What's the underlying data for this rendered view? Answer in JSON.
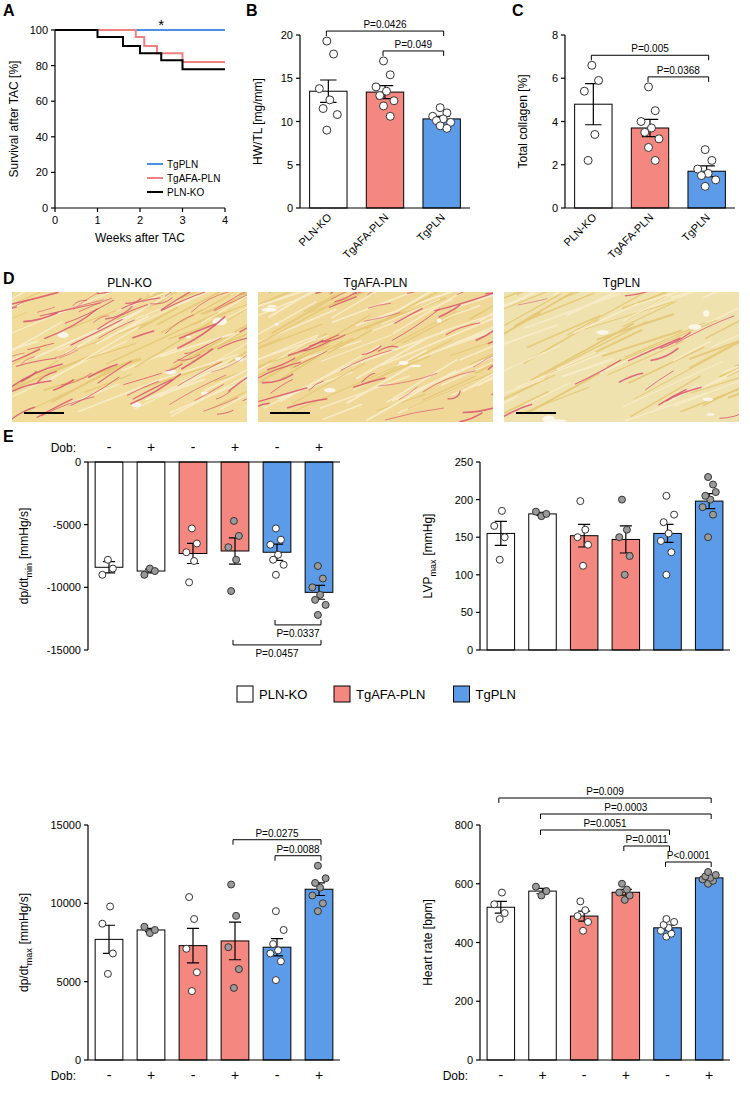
{
  "panel_labels": [
    "A",
    "B",
    "C",
    "D",
    "E"
  ],
  "chart_data": [
    {
      "type": "line",
      "x_label": "Weeks after TAC",
      "y_label": "Survival after TAC [%]",
      "xlim": [
        0,
        4
      ],
      "xticks": [
        0,
        1,
        2,
        3,
        4
      ],
      "ylim": [
        0,
        100
      ],
      "yticks": [
        0,
        20,
        40,
        60,
        80,
        100
      ],
      "legend": "bottom-right",
      "series": [
        {
          "name": "TgPLN",
          "color": "#4a90e2",
          "line_style": "step",
          "x": [
            0,
            4
          ],
          "values": [
            100,
            100
          ]
        },
        {
          "name": "TgAFA-PLN",
          "color": "#f08080",
          "line_style": "step",
          "x": [
            0,
            1.9,
            2.1,
            2.4,
            3,
            4
          ],
          "values": [
            100,
            96,
            91,
            87,
            82,
            82
          ]
        },
        {
          "name": "PLN-KO",
          "color": "#000000",
          "line_style": "step",
          "x": [
            0,
            1,
            1.6,
            2,
            2.5,
            3,
            4
          ],
          "values": [
            100,
            96,
            91,
            87,
            83,
            78,
            78
          ]
        }
      ],
      "annotations": [
        {
          "text": "*",
          "x": 2.5,
          "y": 102
        }
      ]
    },
    {
      "type": "bar",
      "y_label": "HW/TL [mg/mm]",
      "categories": [
        "PLN-KO",
        "TgAFA-PLN",
        "TgPLN"
      ],
      "values": [
        13.5,
        13.4,
        10.3
      ],
      "errors": [
        1.3,
        0.75,
        0.3
      ],
      "points": [
        [
          19.3,
          17.8,
          13.8,
          12.5,
          11.5,
          10.8,
          9.0
        ],
        [
          17.0,
          15.4,
          14.0,
          13.5,
          13.0,
          12.4,
          11.8,
          10.6
        ],
        [
          11.6,
          11.0,
          10.6,
          10.3,
          10.1,
          9.9,
          9.5,
          9.2
        ]
      ],
      "colors": [
        "#ffffff",
        "#f4877f",
        "#5b9be8"
      ],
      "ylim": [
        0,
        20
      ],
      "yticks": [
        0,
        5,
        10,
        15,
        20
      ],
      "comparisons": [
        {
          "from": 1,
          "to": 2,
          "label": "P=0.049"
        },
        {
          "from": 0,
          "to": 2,
          "label": "P=0.0426"
        }
      ]
    },
    {
      "type": "bar",
      "y_label": "Total collagen [%]",
      "categories": [
        "PLN-KO",
        "TgAFA-PLN",
        "TgPLN"
      ],
      "values": [
        4.8,
        3.7,
        1.7
      ],
      "errors": [
        0.95,
        0.4,
        0.25
      ],
      "points": [
        [
          6.6,
          5.9,
          5.4,
          3.4,
          2.2
        ],
        [
          5.6,
          4.5,
          4.0,
          3.7,
          3.5,
          3.2,
          2.8,
          2.2
        ],
        [
          2.7,
          2.2,
          1.8,
          1.6,
          1.5,
          1.3,
          1.0
        ]
      ],
      "colors": [
        "#ffffff",
        "#f4877f",
        "#5b9be8"
      ],
      "ylim": [
        0,
        8
      ],
      "yticks": [
        0,
        2,
        4,
        6,
        8
      ],
      "comparisons": [
        {
          "from": 1,
          "to": 2,
          "label": "P=0.0368"
        },
        {
          "from": 0,
          "to": 2,
          "label": "P=0.005"
        }
      ]
    },
    {
      "type": "bar",
      "y_label": "dp/dt",
      "y_label_subscript": "min",
      "y_label_unit": "[mmHg/s]",
      "x_label": "Dob:",
      "categories": [
        "-",
        "+",
        "-",
        "+",
        "-",
        "+"
      ],
      "values": [
        -8400,
        -8700,
        -7300,
        -7100,
        -7200,
        -10400
      ],
      "errors": [
        450,
        150,
        800,
        1050,
        650,
        550
      ],
      "points": [
        [
          -7800,
          -8500,
          -9000
        ],
        [
          -8500,
          -8700,
          -9000
        ],
        [
          -5300,
          -6500,
          -7200,
          -7900,
          -9600
        ],
        [
          -4700,
          -5900,
          -6800,
          -7800,
          -10300
        ],
        [
          -5300,
          -6200,
          -6600,
          -7400,
          -7800,
          -8200,
          -9000
        ],
        [
          -8300,
          -9300,
          -10000,
          -10600,
          -11000,
          -11400,
          -12200
        ]
      ],
      "colors": [
        "#ffffff",
        "#ffffff",
        "#f4877f",
        "#f4877f",
        "#5b9be8",
        "#5b9be8"
      ],
      "ylim": [
        -15000,
        0
      ],
      "yticks": [
        -15000,
        -10000,
        -5000,
        0
      ],
      "comparisons": [
        {
          "from": 4,
          "to": 5,
          "label": "P=0.0337"
        },
        {
          "from": 3,
          "to": 5,
          "label": "P=0.0457"
        }
      ]
    },
    {
      "type": "bar",
      "y_label": "LVP",
      "y_label_subscript": "max",
      "y_label_unit": "[mmHg]",
      "categories": [
        "-",
        "+",
        "-",
        "+",
        "-",
        "+"
      ],
      "tick_labels": "y",
      "values": [
        155,
        181,
        152,
        147,
        155,
        198
      ],
      "errors": [
        16,
        2,
        15,
        18,
        12,
        10
      ],
      "points": [
        [
          120,
          150,
          165,
          185
        ],
        [
          178,
          181,
          184
        ],
        [
          112,
          140,
          150,
          160,
          198
        ],
        [
          100,
          125,
          150,
          160,
          200
        ],
        [
          100,
          130,
          145,
          155,
          170,
          180,
          205
        ],
        [
          150,
          180,
          190,
          200,
          205,
          210,
          230,
          220
        ]
      ],
      "colors": [
        "#ffffff",
        "#ffffff",
        "#f4877f",
        "#f4877f",
        "#5b9be8",
        "#5b9be8"
      ],
      "ylim": [
        0,
        250
      ],
      "yticks": [
        0,
        50,
        100,
        150,
        200,
        250
      ],
      "comparisons": []
    },
    {
      "type": "bar",
      "y_label": "dp/dt",
      "y_label_subscript": "max",
      "y_label_unit": "[mmHg/s]",
      "x_label": "Dob:",
      "categories": [
        "-",
        "+",
        "-",
        "+",
        "-",
        "+"
      ],
      "values": [
        7700,
        8300,
        7300,
        7600,
        7200,
        10900
      ],
      "errors": [
        900,
        100,
        1100,
        1200,
        550,
        400
      ],
      "points": [
        [
          5500,
          6800,
          8700,
          9800
        ],
        [
          8100,
          8300,
          8500
        ],
        [
          4400,
          5600,
          7100,
          9000,
          10400
        ],
        [
          4600,
          5800,
          7200,
          9200,
          11200
        ],
        [
          5100,
          6300,
          6800,
          7000,
          7400,
          8300,
          9500
        ],
        [
          9500,
          10000,
          10500,
          11000,
          11300,
          11600,
          12400
        ]
      ],
      "colors": [
        "#ffffff",
        "#ffffff",
        "#f4877f",
        "#f4877f",
        "#5b9be8",
        "#5b9be8"
      ],
      "ylim": [
        0,
        15000
      ],
      "yticks": [
        0,
        5000,
        10000,
        15000
      ],
      "comparisons": [
        {
          "from": 4,
          "to": 5,
          "label": "P=0.0088"
        },
        {
          "from": 3,
          "to": 5,
          "label": "P=0.0275"
        }
      ]
    },
    {
      "type": "bar",
      "y_label": "Heart rate [bpm]",
      "x_label": "Dob:",
      "categories": [
        "-",
        "+",
        "-",
        "+",
        "-",
        "+"
      ],
      "values": [
        520,
        575,
        490,
        571,
        450,
        620
      ],
      "errors": [
        20,
        9,
        17,
        10,
        8,
        5
      ],
      "points": [
        [
          480,
          500,
          530,
          570
        ],
        [
          560,
          575,
          590
        ],
        [
          440,
          470,
          490,
          510,
          540
        ],
        [
          545,
          560,
          570,
          580,
          600
        ],
        [
          420,
          430,
          440,
          450,
          460,
          470,
          480
        ],
        [
          600,
          610,
          615,
          620,
          625,
          630,
          640
        ]
      ],
      "colors": [
        "#ffffff",
        "#ffffff",
        "#f4877f",
        "#f4877f",
        "#5b9be8",
        "#5b9be8"
      ],
      "ylim": [
        0,
        800
      ],
      "yticks": [
        0,
        200,
        400,
        600,
        800
      ],
      "comparisons": [
        {
          "from": 4,
          "to": 5,
          "label": "P<0.0001"
        },
        {
          "from": 3,
          "to": 4,
          "label": "P=0.0011"
        },
        {
          "from": 1,
          "to": 4,
          "label": "P=0.0051"
        },
        {
          "from": 1,
          "to": 5,
          "label": "P=0.0003"
        },
        {
          "from": 0,
          "to": 5,
          "label": "P=0.009"
        }
      ]
    }
  ],
  "histology": {
    "titles": [
      "PLN-KO",
      "TgAFA-PLN",
      "TgPLN"
    ]
  },
  "shared_legend": [
    {
      "name": "PLN-KO",
      "color": "#ffffff"
    },
    {
      "name": "TgAFA-PLN",
      "color": "#f4877f"
    },
    {
      "name": "TgPLN",
      "color": "#5b9be8"
    }
  ]
}
